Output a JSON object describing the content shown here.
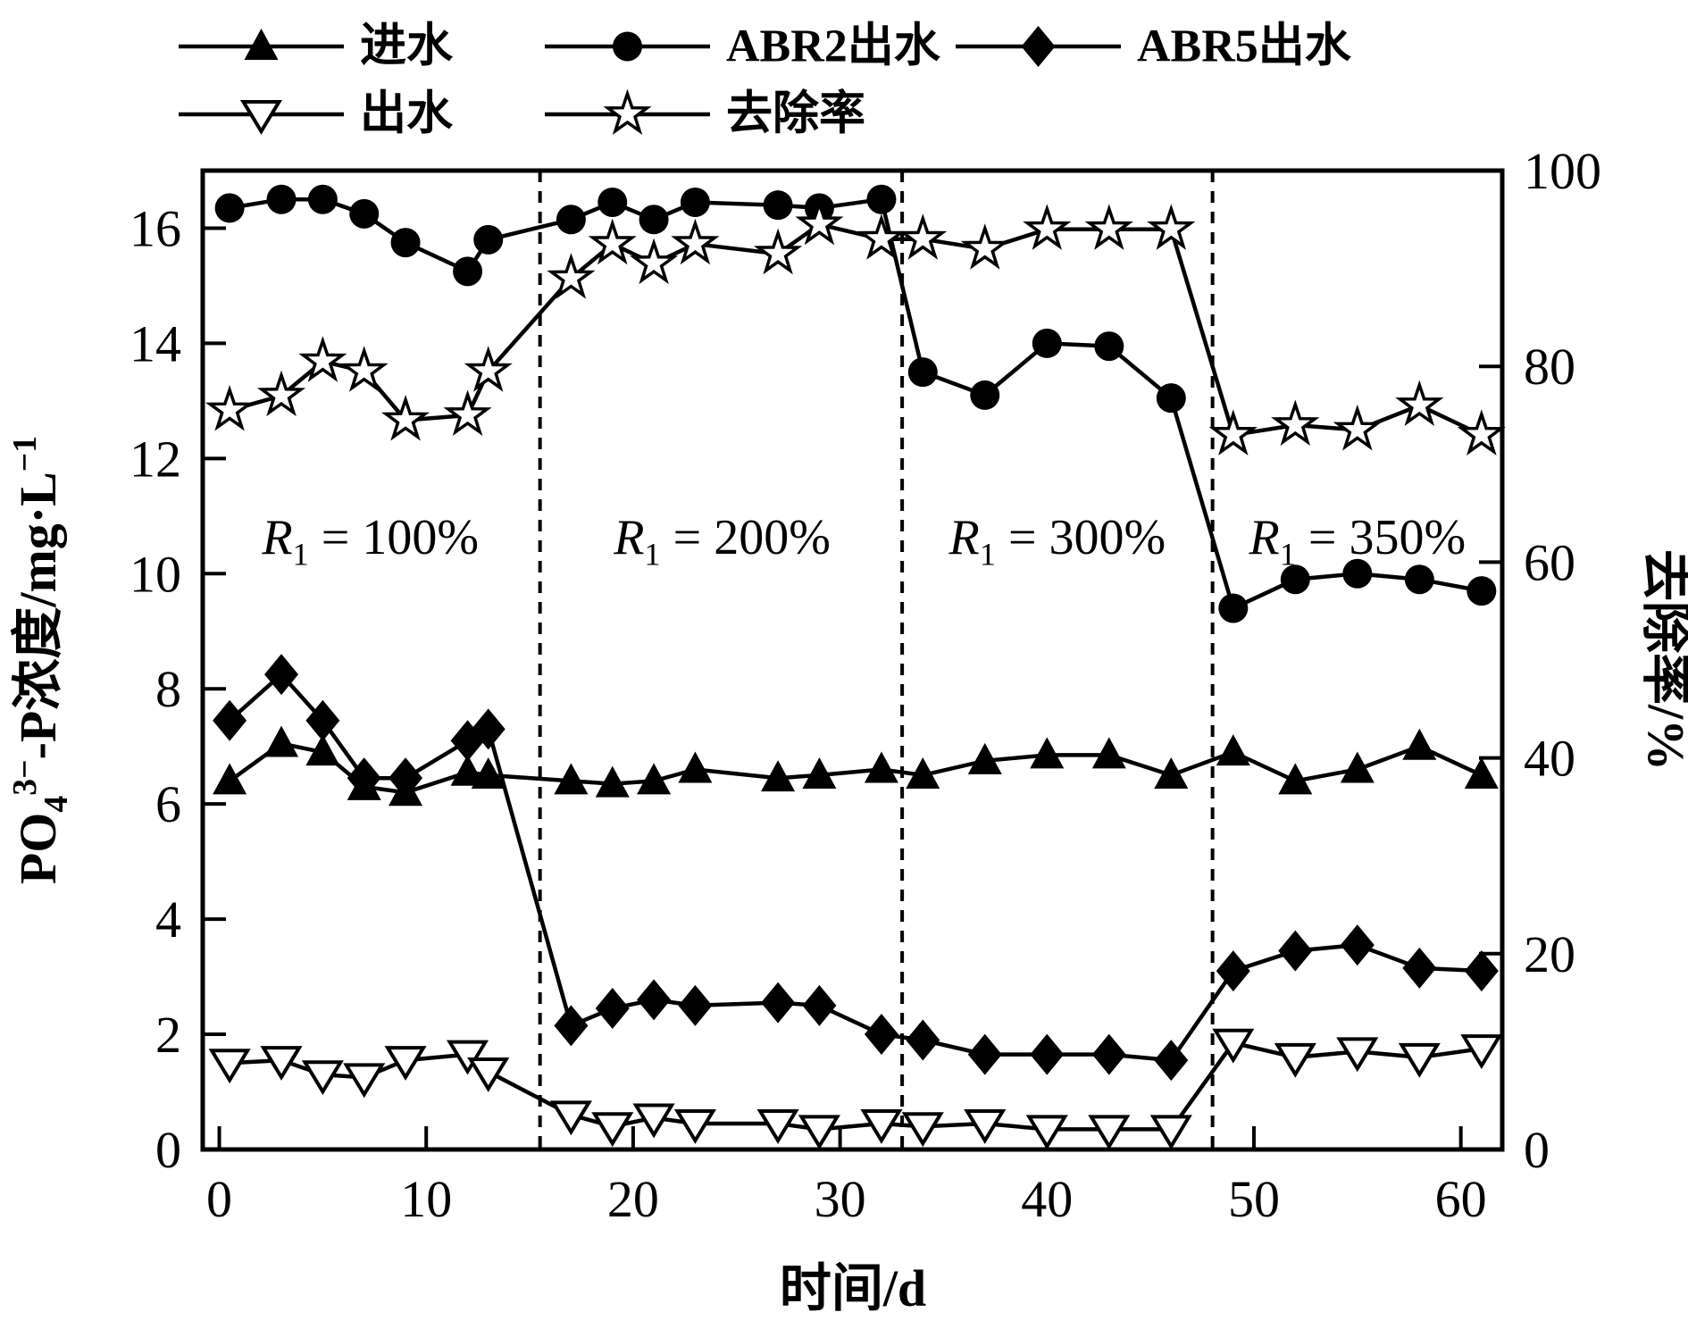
{
  "chart_data": {
    "type": "line",
    "title": "",
    "x_axis": {
      "label": "时间/d",
      "range": [
        -0.8,
        62
      ],
      "ticks": [
        0,
        10,
        20,
        30,
        40,
        50,
        60
      ]
    },
    "y_left": {
      "label_plain": "PO4 3- -P浓度/mg·L-1",
      "label_segments": [
        {
          "t": "PO"
        },
        {
          "t": "4",
          "script": "sub"
        },
        {
          "t": "3−",
          "script": "sup"
        },
        {
          "t": "-P浓度/mg·L"
        },
        {
          "t": "−1",
          "script": "sup"
        }
      ],
      "range": [
        0,
        17
      ],
      "ticks": [
        0,
        2,
        4,
        6,
        8,
        10,
        12,
        14,
        16
      ]
    },
    "y_right": {
      "label": "去除率/%",
      "range": [
        0,
        100
      ],
      "ticks": [
        0,
        20,
        40,
        60,
        80,
        100
      ]
    },
    "phase_dividers_day": [
      15.5,
      33,
      48
    ],
    "phase_labels": [
      {
        "plain": "R1 = 100%",
        "day": 7.3,
        "segments": [
          {
            "t": "R",
            "italic": true
          },
          {
            "t": "1",
            "script": "sub"
          },
          {
            "t": " = 100%"
          }
        ]
      },
      {
        "plain": "R1 = 200%",
        "day": 24.3,
        "segments": [
          {
            "t": "R",
            "italic": true
          },
          {
            "t": "1",
            "script": "sub"
          },
          {
            "t": " = 200%"
          }
        ]
      },
      {
        "plain": "R1 = 300%",
        "day": 40.5,
        "segments": [
          {
            "t": "R",
            "italic": true
          },
          {
            "t": "1",
            "script": "sub"
          },
          {
            "t": " = 300%"
          }
        ]
      },
      {
        "plain": "R1 = 350%",
        "day": 55.0,
        "segments": [
          {
            "t": "R",
            "italic": true
          },
          {
            "t": "1",
            "script": "sub"
          },
          {
            "t": " = 350%"
          }
        ]
      }
    ],
    "x_days": [
      0.5,
      3,
      5,
      7,
      9,
      12,
      13,
      17,
      19,
      21,
      23,
      27,
      29,
      32,
      34,
      37,
      40,
      43,
      46,
      49,
      52,
      55,
      58,
      61
    ],
    "series": [
      {
        "name": "进水",
        "slug": "influent",
        "marker": "triangle-filled",
        "axis": "left",
        "values": [
          6.4,
          7.05,
          6.9,
          6.3,
          6.2,
          6.55,
          6.5,
          6.4,
          6.35,
          6.4,
          6.6,
          6.45,
          6.5,
          6.6,
          6.5,
          6.75,
          6.85,
          6.85,
          6.5,
          6.9,
          6.4,
          6.6,
          7.0,
          6.5
        ]
      },
      {
        "name": "ABR2出水",
        "slug": "abr2-effluent",
        "marker": "circle-filled",
        "axis": "left",
        "values": [
          16.35,
          16.5,
          16.5,
          16.25,
          15.75,
          15.25,
          15.8,
          16.15,
          16.45,
          16.15,
          16.45,
          16.4,
          16.35,
          16.5,
          13.5,
          13.1,
          14.0,
          13.95,
          13.05,
          9.4,
          9.9,
          10.0,
          9.9,
          9.7
        ]
      },
      {
        "name": "ABR5出水",
        "slug": "abr5-effluent",
        "marker": "diamond-filled",
        "axis": "left",
        "values": [
          7.45,
          8.25,
          7.45,
          6.45,
          6.45,
          7.1,
          7.3,
          2.15,
          2.45,
          2.6,
          2.5,
          2.55,
          2.5,
          2.0,
          1.9,
          1.65,
          1.65,
          1.65,
          1.55,
          3.1,
          3.45,
          3.55,
          3.15,
          3.1
        ]
      },
      {
        "name": "出水",
        "slug": "effluent",
        "marker": "triangle-down-open",
        "axis": "left",
        "values": [
          1.5,
          1.55,
          1.3,
          1.25,
          1.55,
          1.65,
          1.35,
          0.6,
          0.4,
          0.55,
          0.45,
          0.45,
          0.35,
          0.45,
          0.4,
          0.45,
          0.35,
          0.35,
          0.35,
          1.85,
          1.6,
          1.7,
          1.6,
          1.75
        ]
      },
      {
        "name": "去除率",
        "slug": "removal-rate",
        "marker": "star-open",
        "axis": "right",
        "values": [
          75.5,
          77,
          80.5,
          79.5,
          74.5,
          75,
          79.5,
          89,
          92.5,
          90.5,
          92.5,
          91.5,
          94.5,
          93,
          93,
          92,
          94,
          94,
          94,
          73,
          74,
          73.5,
          76,
          73
        ]
      }
    ],
    "legend": {
      "rows": [
        [
          0,
          1,
          2
        ],
        [
          3,
          4
        ]
      ]
    },
    "grid": "off",
    "colors": {
      "ink": "#000000",
      "background": "#ffffff"
    }
  }
}
